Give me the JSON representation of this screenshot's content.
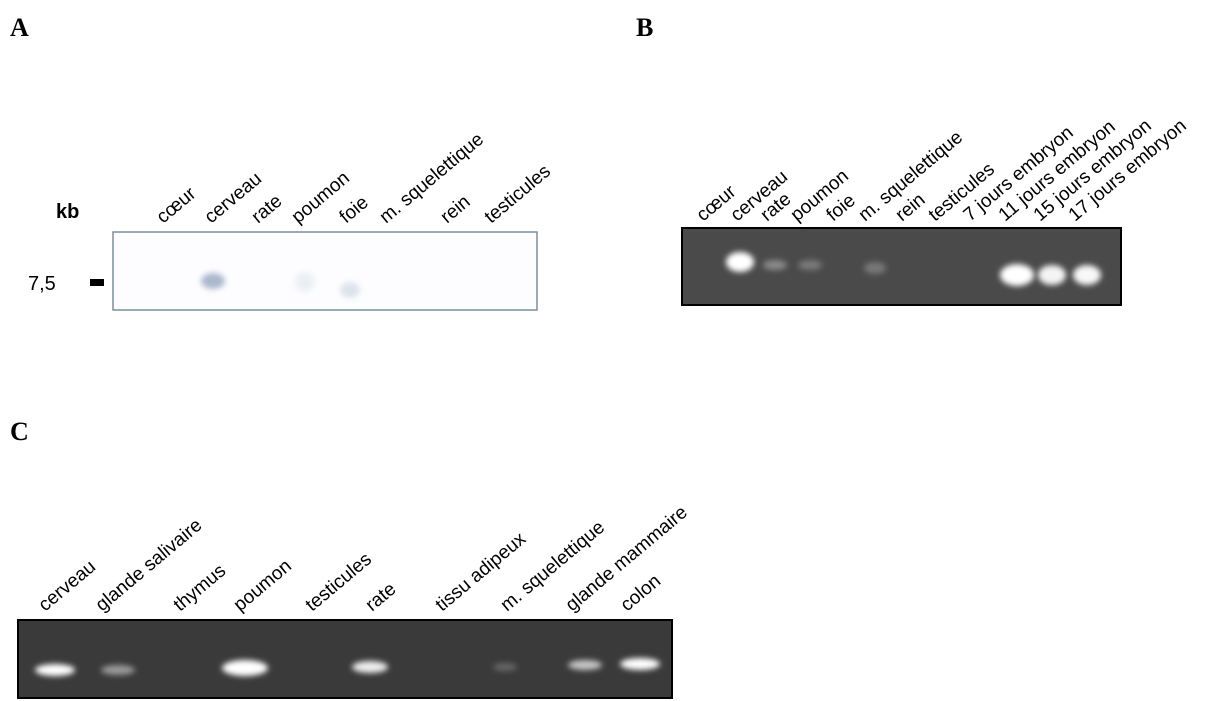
{
  "panels": [
    {
      "label": "A",
      "unit_label": "kb",
      "marker": "7,5",
      "lanes": [
        "cœur",
        "cerveau",
        "rate",
        "poumon",
        "foie",
        "m. squelettique",
        "rein",
        "testicules"
      ]
    },
    {
      "label": "B",
      "lanes": [
        "cœur",
        "cerveau",
        "rate",
        "poumon",
        "foie",
        "m. squelettique",
        "rein",
        "testicules",
        "7 jours embryon",
        "11 jours embryon",
        "15 jours embryon",
        "17 jours embryon"
      ]
    },
    {
      "label": "C",
      "lanes": [
        "cerveau",
        "glande salivaire",
        "thymus",
        "poumon",
        "testicules",
        "rate",
        "tissu adipeux",
        "m. squelettique",
        "glande mammaire",
        "colon"
      ]
    }
  ]
}
